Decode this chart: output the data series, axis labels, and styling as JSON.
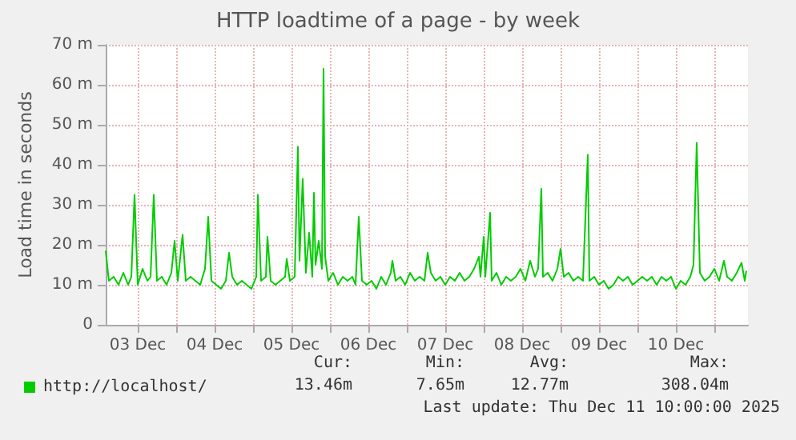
{
  "chart_data": {
    "type": "line",
    "title": "HTTP loadtime of a page - by week",
    "ylabel": "Load time in seconds",
    "x": [
      "2025-12-03T02:00",
      "2025-12-03T03:00",
      "2025-12-03T04:30",
      "2025-12-03T06:00",
      "2025-12-03T07:30",
      "2025-12-03T09:00",
      "2025-12-03T10:00",
      "2025-12-03T11:00",
      "2025-12-03T12:00",
      "2025-12-03T13:30",
      "2025-12-03T15:00",
      "2025-12-03T16:00",
      "2025-12-03T17:00",
      "2025-12-03T18:00",
      "2025-12-03T19:30",
      "2025-12-03T21:00",
      "2025-12-03T22:30",
      "2025-12-03T23:30",
      "2025-12-04T00:30",
      "2025-12-04T02:00",
      "2025-12-04T03:00",
      "2025-12-04T04:30",
      "2025-12-04T06:00",
      "2025-12-04T07:30",
      "2025-12-04T09:00",
      "2025-12-04T10:00",
      "2025-12-04T11:00",
      "2025-12-04T12:30",
      "2025-12-04T14:00",
      "2025-12-04T15:30",
      "2025-12-04T16:30",
      "2025-12-04T17:30",
      "2025-12-04T19:00",
      "2025-12-04T20:30",
      "2025-12-04T22:00",
      "2025-12-04T23:30",
      "2025-12-05T01:00",
      "2025-12-05T01:30",
      "2025-12-05T02:30",
      "2025-12-05T04:00",
      "2025-12-05T04:30",
      "2025-12-05T05:30",
      "2025-12-05T07:00",
      "2025-12-05T08:30",
      "2025-12-05T10:00",
      "2025-12-05T10:30",
      "2025-12-05T11:30",
      "2025-12-05T13:00",
      "2025-12-05T14:00",
      "2025-12-05T14:30",
      "2025-12-05T15:30",
      "2025-12-05T16:30",
      "2025-12-05T17:30",
      "2025-12-05T18:30",
      "2025-12-05T19:00",
      "2025-12-05T19:30",
      "2025-12-05T20:30",
      "2025-12-05T21:30",
      "2025-12-05T22:00",
      "2025-12-05T22:30",
      "2025-12-05T23:30",
      "2025-12-06T01:00",
      "2025-12-06T02:30",
      "2025-12-06T04:00",
      "2025-12-06T05:30",
      "2025-12-06T07:00",
      "2025-12-06T08:00",
      "2025-12-06T09:00",
      "2025-12-06T10:00",
      "2025-12-06T11:30",
      "2025-12-06T13:00",
      "2025-12-06T14:30",
      "2025-12-06T16:00",
      "2025-12-06T17:30",
      "2025-12-06T19:00",
      "2025-12-06T19:30",
      "2025-12-06T20:30",
      "2025-12-06T22:00",
      "2025-12-06T23:30",
      "2025-12-07T01:00",
      "2025-12-07T02:30",
      "2025-12-07T04:00",
      "2025-12-07T05:30",
      "2025-12-07T06:30",
      "2025-12-07T07:30",
      "2025-12-07T09:00",
      "2025-12-07T10:30",
      "2025-12-07T12:00",
      "2025-12-07T13:30",
      "2025-12-07T15:00",
      "2025-12-07T16:30",
      "2025-12-07T18:00",
      "2025-12-07T19:30",
      "2025-12-07T21:00",
      "2025-12-07T22:30",
      "2025-12-07T23:00",
      "2025-12-08T00:00",
      "2025-12-08T00:30",
      "2025-12-08T02:00",
      "2025-12-08T02:30",
      "2025-12-08T04:00",
      "2025-12-08T05:30",
      "2025-12-08T07:00",
      "2025-12-08T08:30",
      "2025-12-08T10:00",
      "2025-12-08T11:30",
      "2025-12-08T13:00",
      "2025-12-08T14:30",
      "2025-12-08T16:00",
      "2025-12-08T17:00",
      "2025-12-08T18:00",
      "2025-12-08T18:30",
      "2025-12-08T20:00",
      "2025-12-08T21:30",
      "2025-12-08T23:00",
      "2025-12-09T00:00",
      "2025-12-09T01:00",
      "2025-12-09T02:30",
      "2025-12-09T04:00",
      "2025-12-09T05:30",
      "2025-12-09T07:00",
      "2025-12-09T08:30",
      "2025-12-09T09:00",
      "2025-12-09T10:30",
      "2025-12-09T12:00",
      "2025-12-09T13:30",
      "2025-12-09T15:00",
      "2025-12-09T16:30",
      "2025-12-09T18:00",
      "2025-12-09T19:30",
      "2025-12-09T21:00",
      "2025-12-09T22:30",
      "2025-12-10T00:00",
      "2025-12-10T01:30",
      "2025-12-10T03:00",
      "2025-12-10T04:30",
      "2025-12-10T06:00",
      "2025-12-10T07:30",
      "2025-12-10T09:00",
      "2025-12-10T10:30",
      "2025-12-10T12:00",
      "2025-12-10T13:30",
      "2025-12-10T15:00",
      "2025-12-10T16:30",
      "2025-12-10T17:30",
      "2025-12-10T18:30",
      "2025-12-10T19:30",
      "2025-12-10T21:00",
      "2025-12-10T22:30",
      "2025-12-11T00:00",
      "2025-12-11T01:30",
      "2025-12-11T03:00",
      "2025-12-11T04:00",
      "2025-12-11T05:30",
      "2025-12-11T07:00",
      "2025-12-11T08:30",
      "2025-12-11T09:30",
      "2025-12-11T10:00"
    ],
    "series": [
      {
        "name": "http://localhost/",
        "color": "#00cc00",
        "values": [
          18.5,
          11,
          12,
          10,
          13,
          10,
          12,
          32.5,
          10,
          14,
          11,
          12,
          32.5,
          11,
          12,
          10,
          13,
          21,
          11,
          22.5,
          11,
          12,
          11,
          10,
          14,
          27,
          11,
          10,
          9,
          11,
          18,
          12,
          10,
          11,
          10,
          9,
          12,
          32.5,
          11,
          12,
          22,
          11,
          10,
          11,
          12,
          16.5,
          11,
          12,
          44.5,
          16,
          36.5,
          13,
          23,
          12,
          33,
          15,
          21,
          14,
          64,
          17,
          11,
          13,
          10,
          12,
          11,
          12,
          10,
          27,
          11,
          10,
          11,
          9,
          12,
          10,
          13,
          16,
          11,
          12,
          10,
          13,
          11,
          12,
          11,
          18,
          13,
          11,
          12,
          10,
          12,
          11,
          13,
          11,
          12,
          14,
          17,
          12,
          22,
          12,
          28,
          11,
          13,
          10,
          12,
          11,
          12,
          14,
          11,
          16,
          12,
          14,
          34,
          12,
          13,
          11,
          14,
          19,
          12,
          13,
          11,
          12,
          11,
          42.5,
          11,
          12,
          10,
          11,
          9,
          10,
          12,
          11,
          12,
          10,
          11,
          12,
          11,
          12,
          10,
          12,
          11,
          12,
          9,
          11,
          10,
          12,
          15,
          45.5,
          13,
          11,
          12,
          14,
          11,
          16,
          12,
          11,
          13,
          15.5,
          11,
          13.5
        ]
      }
    ],
    "xlim": [
      "2025-12-03T02:00",
      "2025-12-11T10:30"
    ],
    "xticks": [
      {
        "value": "2025-12-03T12:00",
        "label": "03 Dec"
      },
      {
        "value": "2025-12-04T00:00",
        "label": null
      },
      {
        "value": "2025-12-04T12:00",
        "label": "04 Dec"
      },
      {
        "value": "2025-12-05T00:00",
        "label": null
      },
      {
        "value": "2025-12-05T12:00",
        "label": "05 Dec"
      },
      {
        "value": "2025-12-06T00:00",
        "label": null
      },
      {
        "value": "2025-12-06T12:00",
        "label": "06 Dec"
      },
      {
        "value": "2025-12-07T00:00",
        "label": null
      },
      {
        "value": "2025-12-07T12:00",
        "label": "07 Dec"
      },
      {
        "value": "2025-12-08T00:00",
        "label": null
      },
      {
        "value": "2025-12-08T12:00",
        "label": "08 Dec"
      },
      {
        "value": "2025-12-09T00:00",
        "label": null
      },
      {
        "value": "2025-12-09T12:00",
        "label": "09 Dec"
      },
      {
        "value": "2025-12-10T00:00",
        "label": null
      },
      {
        "value": "2025-12-10T12:00",
        "label": "10 Dec"
      },
      {
        "value": "2025-12-11T00:00",
        "label": null
      }
    ],
    "ylim": [
      0,
      70
    ],
    "yticks": [
      0,
      {
        "value": 10,
        "label": "10 m"
      },
      {
        "value": 20,
        "label": "20 m"
      },
      {
        "value": 30,
        "label": "30 m"
      },
      {
        "value": 40,
        "label": "40 m"
      },
      {
        "value": 50,
        "label": "50 m"
      },
      {
        "value": 60,
        "label": "60 m"
      },
      {
        "value": 70,
        "label": "70 m"
      }
    ],
    "grid": true,
    "legend": "bottom left",
    "marker": "none",
    "line_style": "solid",
    "annotations": [
      "Cur:",
      "13.46m",
      "Min:",
      "7.65m",
      "Avg:",
      "12.77m",
      "Max:",
      "308.04m",
      "Last update: Thu Dec 11 10:00:00 2025"
    ]
  }
}
